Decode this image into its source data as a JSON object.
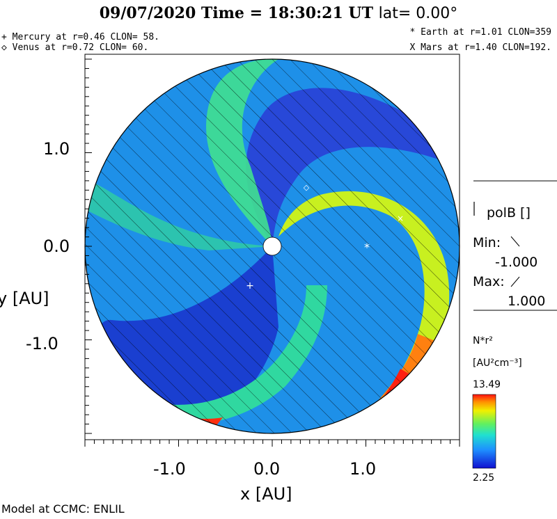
{
  "header": {
    "title_left": "09/07/2020 Time = 18:30:21 UT",
    "title_lat": "lat= 0.00°"
  },
  "planets": {
    "mercury": "+ Mercury at r=0.46 CLON= 58.",
    "venus": "◇ Venus at r=0.72 CLON= 60.",
    "earth": "* Earth at  r=1.01 CLON=359",
    "mars": "X Mars at r=1.40 CLON=192."
  },
  "footer": {
    "credit": "Model at CCMC: ENLIL"
  },
  "legend": {
    "polarity_label": "polB []",
    "min_label": "Min:",
    "min_value": "-1.000",
    "max_label": "Max:",
    "max_value": "1.000",
    "colorbar_label": "N*r²",
    "colorbar_units": "[AU²cm⁻³]",
    "colorbar_max": "13.49",
    "colorbar_min": "2.25"
  },
  "colors": {
    "low": "#2020b0",
    "mid": "#00e0e0",
    "high": "#ff2000"
  },
  "chart_data": {
    "type": "heatmap",
    "title": "09/07/2020 Time = 18:30:21 UT lat= 0.00°",
    "xlabel": "x [AU]",
    "ylabel": "y [AU]",
    "xlim": [
      -2,
      2
    ],
    "ylim": [
      -2,
      2
    ],
    "x_ticks": [
      "-1.0",
      "0.0",
      "1.0"
    ],
    "y_ticks": [
      "1.0",
      "0.0",
      "-1.0"
    ],
    "colorbar": {
      "quantity": "N*r²",
      "units": "[AU²cm⁻³]",
      "min": 2.25,
      "max": 13.49
    },
    "polarity": {
      "quantity": "polB",
      "min": -1.0,
      "max": 1.0
    },
    "markers": [
      {
        "name": "Mercury",
        "symbol": "+",
        "r": 0.46,
        "clon": 58
      },
      {
        "name": "Venus",
        "symbol": "◇",
        "r": 0.72,
        "clon": 60
      },
      {
        "name": "Earth",
        "symbol": "*",
        "r": 1.01,
        "clon": 359
      },
      {
        "name": "Mars",
        "symbol": "X",
        "r": 1.4,
        "clon": 192
      }
    ]
  }
}
